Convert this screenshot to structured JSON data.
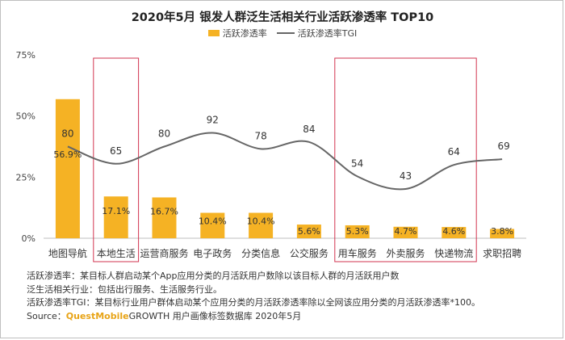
{
  "chart_data": {
    "type": "bar",
    "title": "2020年5月 银发人群泛生活相关行业活跃渗透率 TOP10",
    "categories": [
      "地图导航",
      "本地生活",
      "运营商服务",
      "电子政务",
      "分类信息",
      "公交服务",
      "用车服务",
      "外卖服务",
      "快递物流",
      "求职招聘"
    ],
    "series": [
      {
        "name": "活跃渗透率",
        "type": "bar",
        "values": [
          56.9,
          17.1,
          16.7,
          10.4,
          10.4,
          5.6,
          5.3,
          4.7,
          4.6,
          3.8
        ],
        "labels": [
          "56.9%",
          "17.1%",
          "16.7%",
          "10.4%",
          "10.4%",
          "5.6%",
          "5.3%",
          "4.7%",
          "4.6%",
          "3.8%"
        ],
        "color": "#F5B224"
      },
      {
        "name": "活跃渗透率TGI",
        "type": "line",
        "values": [
          80,
          65,
          80,
          92,
          78,
          84,
          54,
          43,
          64,
          69
        ],
        "color": "#666666"
      }
    ],
    "y_ticks": [
      "0%",
      "25%",
      "50%",
      "75%"
    ],
    "ylim": [
      0,
      75
    ],
    "highlight_boxes": [
      {
        "from": "本地生活",
        "to": "本地生活"
      },
      {
        "from": "用车服务",
        "to": "快递物流"
      }
    ],
    "highlight_color": "#D2334F",
    "grid": false,
    "legend_position": "top"
  },
  "notes": {
    "line1": "活跃渗透率：某目标人群启动某个App应用分类的月活跃用户数除以该目标人群的月活跃用户数",
    "line2": "泛生活相关行业：包括出行服务、生活服务行业。",
    "line3": "活跃渗透率TGI：某目标行业用户群体启动某个应用分类的月活跃渗透率除以全网该应用分类的月活跃渗透率*100。",
    "source_prefix": "Source：",
    "source_brand": "QuestMobile",
    "source_suffix": "GROWTH 用户画像标签数据库 2020年5月"
  }
}
